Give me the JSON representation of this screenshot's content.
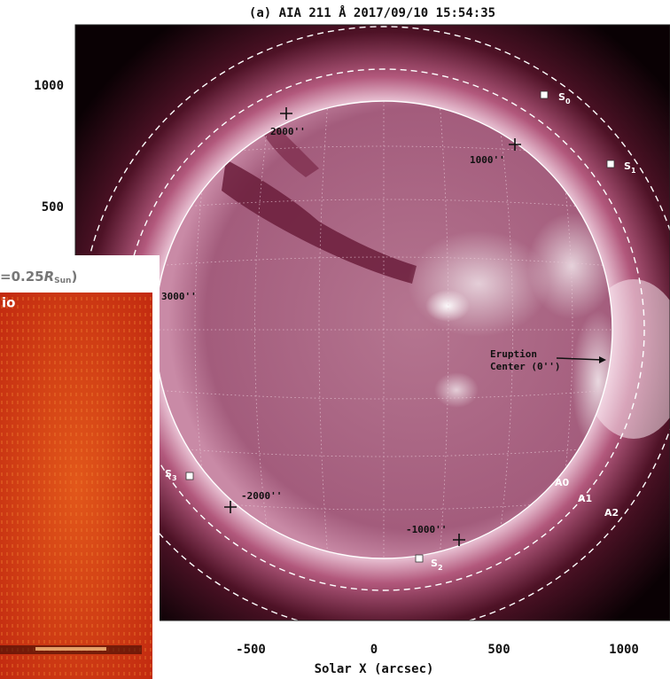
{
  "title": "(a) AIA 211 Å 2017/09/10 15:54:35",
  "x_axis": {
    "label": "Solar X (arcsec)",
    "ticks": [
      "-500",
      "0",
      "500",
      "1000"
    ]
  },
  "y_axis": {
    "ticks": [
      "1000",
      "500"
    ]
  },
  "points": [
    {
      "label": "S",
      "sub": "0"
    },
    {
      "label": "S",
      "sub": "1"
    },
    {
      "label": "S",
      "sub": "2"
    },
    {
      "label": "S",
      "sub": "3"
    }
  ],
  "distances": [
    "2000''",
    "1000''",
    "3000''",
    "-2000''",
    "-1000''"
  ],
  "eruption": {
    "line1": "Eruption",
    "line2": "Center (0'')"
  },
  "rings": [
    "A0",
    "A1",
    "A2"
  ],
  "inset": {
    "prefix": "=0.25",
    "symbol": "R",
    "sub": "Sun",
    "suffix": ")",
    "label": "io"
  }
}
